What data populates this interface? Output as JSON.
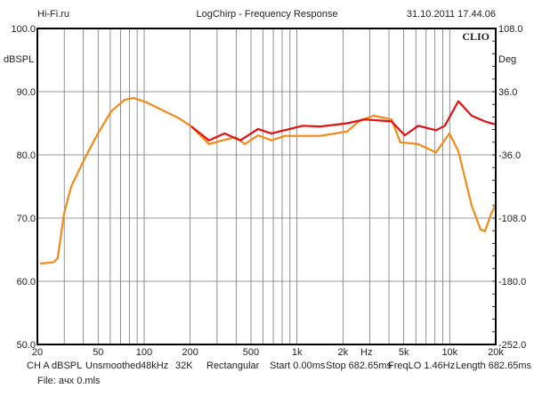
{
  "header": {
    "left": "Hi-Fi.ru",
    "title": "LogChirp - Frequency Response",
    "datetime": "31.10.2011 17.44.06"
  },
  "logo": "CLIO",
  "chart_data": {
    "type": "line",
    "title": "LogChirp - Frequency Response",
    "xlabel": "Hz",
    "ylabel": "dBSPL",
    "y2label": "Deg",
    "xscale": "log",
    "xlim": [
      20,
      20000
    ],
    "ylim": [
      50,
      100
    ],
    "y2lim": [
      -252,
      108
    ],
    "grid": true,
    "x_ticks": [
      {
        "v": 20,
        "label": "20"
      },
      {
        "v": 50,
        "label": "50"
      },
      {
        "v": 100,
        "label": "100"
      },
      {
        "v": 200,
        "label": "200"
      },
      {
        "v": 500,
        "label": "500"
      },
      {
        "v": 1000,
        "label": "1k"
      },
      {
        "v": 2000,
        "label": "2k"
      },
      {
        "v": 5000,
        "label": "5k"
      },
      {
        "v": 10000,
        "label": "10k"
      },
      {
        "v": 20000,
        "label": "20k"
      }
    ],
    "x_unit_label_pos_hz": 2850,
    "y_ticks": [
      "100.0",
      "90.0",
      "80.0",
      "70.0",
      "60.0",
      "50.0"
    ],
    "y2_ticks": [
      "108.0",
      "36.0",
      "-36.0",
      "-108.0",
      "-180.0",
      "-252.0"
    ],
    "series": [
      {
        "name": "orange",
        "color": "#f28a1a",
        "x": [
          20.8,
          25.5,
          27.2,
          29.9,
          33.3,
          40.7,
          49.8,
          60.9,
          74.5,
          85,
          104,
          136,
          166,
          204,
          266,
          325,
          398,
          455,
          556,
          681,
          832,
          1423,
          2130,
          2600,
          3180,
          4160,
          4750,
          6220,
          8130,
          9950,
          11380,
          13900,
          15900,
          17000,
          18670,
          20000
        ],
        "y": [
          62.8,
          63.0,
          63.7,
          70.7,
          75.0,
          79.4,
          83.4,
          86.9,
          88.7,
          89.0,
          88.3,
          86.9,
          85.9,
          84.5,
          81.7,
          82.3,
          82.8,
          81.7,
          83.1,
          82.3,
          83.0,
          83.0,
          83.7,
          85.5,
          86.2,
          85.6,
          82.0,
          81.7,
          80.4,
          83.4,
          80.6,
          72.0,
          68.2,
          67.9,
          70.7,
          72.1
        ]
      },
      {
        "name": "red",
        "color": "#e01010",
        "x": [
          204,
          266,
          336,
          426,
          556,
          681,
          1089,
          1423,
          2130,
          2780,
          4160,
          5080,
          6220,
          8130,
          9290,
          11380,
          13900,
          17000,
          20000
        ],
        "y": [
          84.5,
          82.3,
          83.4,
          82.3,
          84.1,
          83.4,
          84.6,
          84.5,
          85.0,
          85.6,
          85.3,
          83.1,
          84.6,
          83.9,
          84.6,
          88.5,
          86.2,
          85.3,
          84.8
        ]
      }
    ]
  },
  "footer": {
    "items": [
      "CH A",
      "dBSPL",
      "Unsmoothed",
      "48kHz",
      "32K",
      "Rectangular",
      "Start 0.00ms",
      "Stop 682.65ms",
      "FreqLO 1.46Hz",
      "Length 682.65ms"
    ],
    "file": "File: aчх 0.mls"
  }
}
